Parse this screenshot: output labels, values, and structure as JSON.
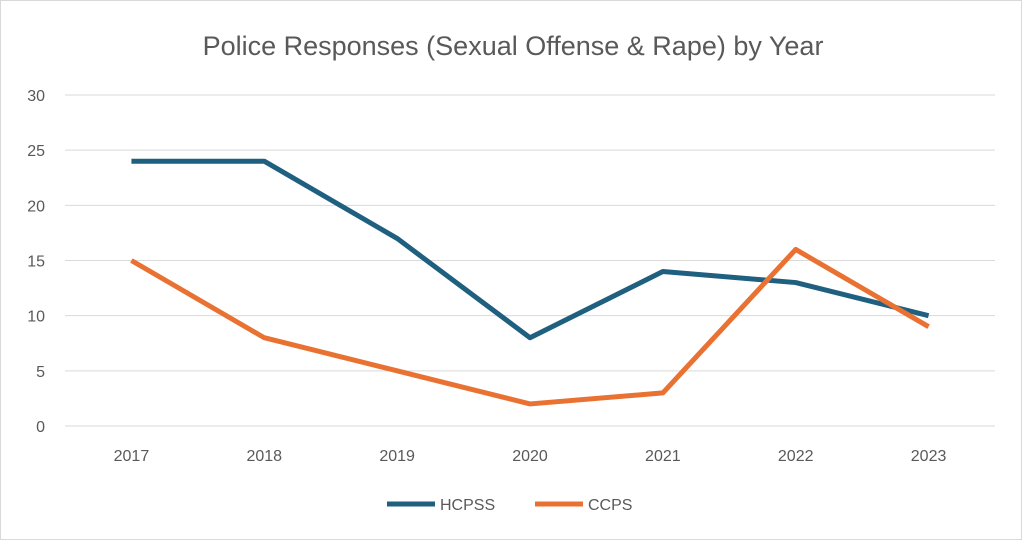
{
  "chart_data": {
    "type": "line",
    "title": "Police Responses (Sexual Offense & Rape) by Year",
    "xlabel": "",
    "ylabel": "",
    "categories": [
      "2017",
      "2018",
      "2019",
      "2020",
      "2021",
      "2022",
      "2023"
    ],
    "y_ticks": [
      "0",
      "5",
      "10",
      "15",
      "20",
      "25",
      "30"
    ],
    "ylim": [
      0,
      30
    ],
    "grid": true,
    "legend_position": "bottom",
    "series": [
      {
        "name": "HCPSS",
        "color": "#1f5f7f",
        "values": [
          24,
          24,
          17,
          8,
          14,
          13,
          10
        ]
      },
      {
        "name": "CCPS",
        "color": "#e97132",
        "values": [
          15,
          8,
          5,
          2,
          3,
          16,
          9
        ]
      }
    ]
  }
}
